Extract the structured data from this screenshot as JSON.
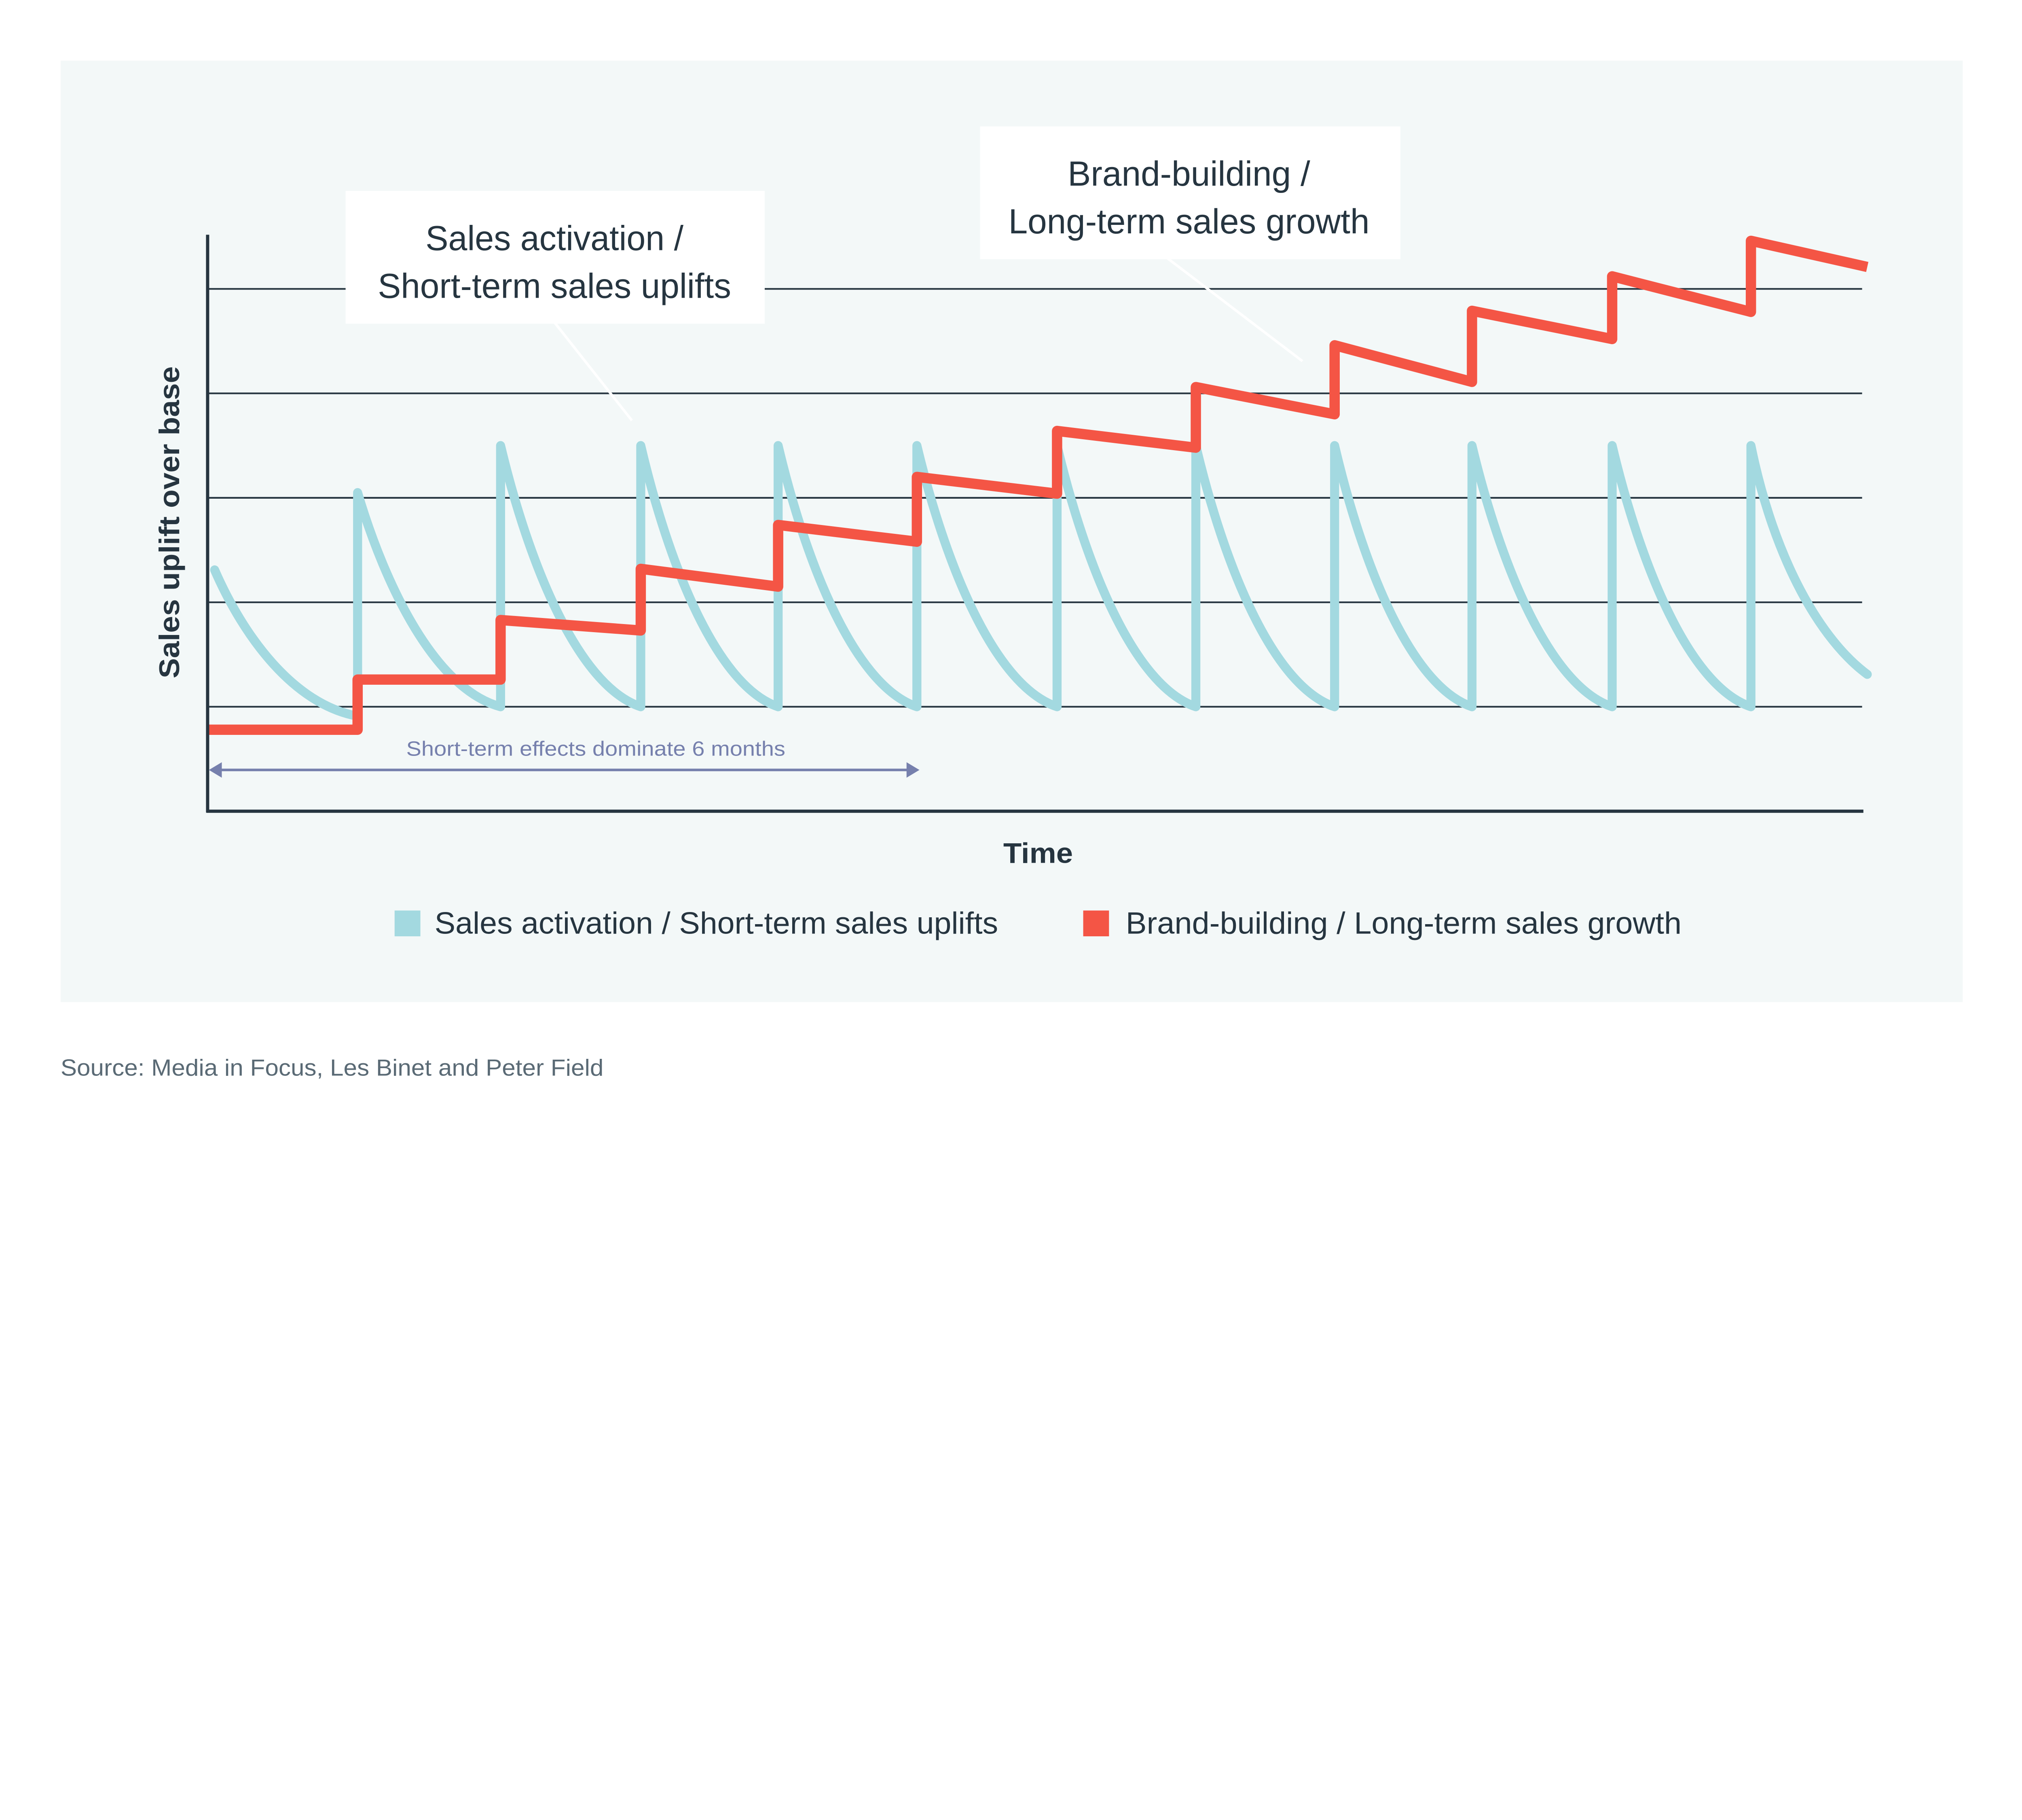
{
  "chart_data": {
    "type": "line",
    "xlabel": "Time",
    "ylabel": "Sales uplift over base",
    "ylim": [
      0,
      5.5
    ],
    "xlim": [
      0,
      11.8
    ],
    "grid": true,
    "gridlines_y": [
      1,
      2,
      3,
      4,
      5
    ],
    "legend_position": "bottom",
    "series": [
      {
        "name": "Sales activation / Short-term sales uplifts",
        "color": "#a3d9e0",
        "shape": "sawtooth-decay",
        "start": {
          "x": 0.05,
          "y": 2.31
        },
        "pulses": [
          {
            "x": 1.07,
            "trough_before": 0.91,
            "peak": 3.05
          },
          {
            "x": 2.09,
            "trough_before": 1.0,
            "peak": 3.5
          },
          {
            "x": 3.09,
            "trough_before": 1.0,
            "peak": 3.5
          },
          {
            "x": 4.07,
            "trough_before": 1.0,
            "peak": 3.5
          },
          {
            "x": 5.06,
            "trough_before": 1.0,
            "peak": 3.5
          },
          {
            "x": 6.06,
            "trough_before": 1.0,
            "peak": 3.5
          },
          {
            "x": 7.05,
            "trough_before": 1.0,
            "peak": 3.5
          },
          {
            "x": 8.04,
            "trough_before": 1.0,
            "peak": 3.5
          },
          {
            "x": 9.02,
            "trough_before": 1.0,
            "peak": 3.5
          },
          {
            "x": 10.02,
            "trough_before": 1.0,
            "peak": 3.5
          },
          {
            "x": 11.01,
            "trough_before": 1.0,
            "peak": 3.5
          }
        ],
        "end": {
          "x": 11.84,
          "y": 1.31
        }
      },
      {
        "name": "Brand-building / Long-term sales growth",
        "color": "#f45545",
        "shape": "step",
        "segments": [
          {
            "x0": 0.0,
            "x1": 1.07,
            "y0": 0.78,
            "y1": 0.78
          },
          {
            "x0": 1.07,
            "x1": 2.09,
            "y0": 1.26,
            "y1": 1.26
          },
          {
            "x0": 2.09,
            "x1": 3.09,
            "y0": 1.83,
            "y1": 1.73
          },
          {
            "x0": 3.09,
            "x1": 4.07,
            "y0": 2.32,
            "y1": 2.15
          },
          {
            "x0": 4.07,
            "x1": 5.06,
            "y0": 2.74,
            "y1": 2.58
          },
          {
            "x0": 5.06,
            "x1": 6.06,
            "y0": 3.2,
            "y1": 3.04
          },
          {
            "x0": 6.06,
            "x1": 7.05,
            "y0": 3.64,
            "y1": 3.48
          },
          {
            "x0": 7.05,
            "x1": 8.04,
            "y0": 4.06,
            "y1": 3.8
          },
          {
            "x0": 8.04,
            "x1": 9.02,
            "y0": 4.46,
            "y1": 4.11
          },
          {
            "x0": 9.02,
            "x1": 10.02,
            "y0": 4.79,
            "y1": 4.52
          },
          {
            "x0": 10.02,
            "x1": 11.01,
            "y0": 5.12,
            "y1": 4.78
          },
          {
            "x0": 11.01,
            "x1": 11.84,
            "y0": 5.46,
            "y1": 5.21
          }
        ]
      }
    ],
    "annotations": [
      {
        "text": "Short-term effects dominate 6 months",
        "type": "double-arrow",
        "x0": 0,
        "x1": 5.06,
        "y": 0.4
      }
    ],
    "callouts": {
      "sales_activation": [
        "Sales activation /",
        "Short-term sales uplifts"
      ],
      "brand_building": [
        "Brand-building /",
        "Long-term sales growth"
      ]
    }
  },
  "legend": {
    "items": [
      {
        "label": "Sales activation / Short-term sales uplifts",
        "color": "#a3d9e0"
      },
      {
        "label": "Brand-building / Long-term sales growth",
        "color": "#f45545"
      }
    ]
  },
  "source": "Source: Media in Focus, Les Binet and Peter Field",
  "colors": {
    "panel": "#f3f8f8",
    "axis": "#263540",
    "annotation": "#7680ad"
  }
}
